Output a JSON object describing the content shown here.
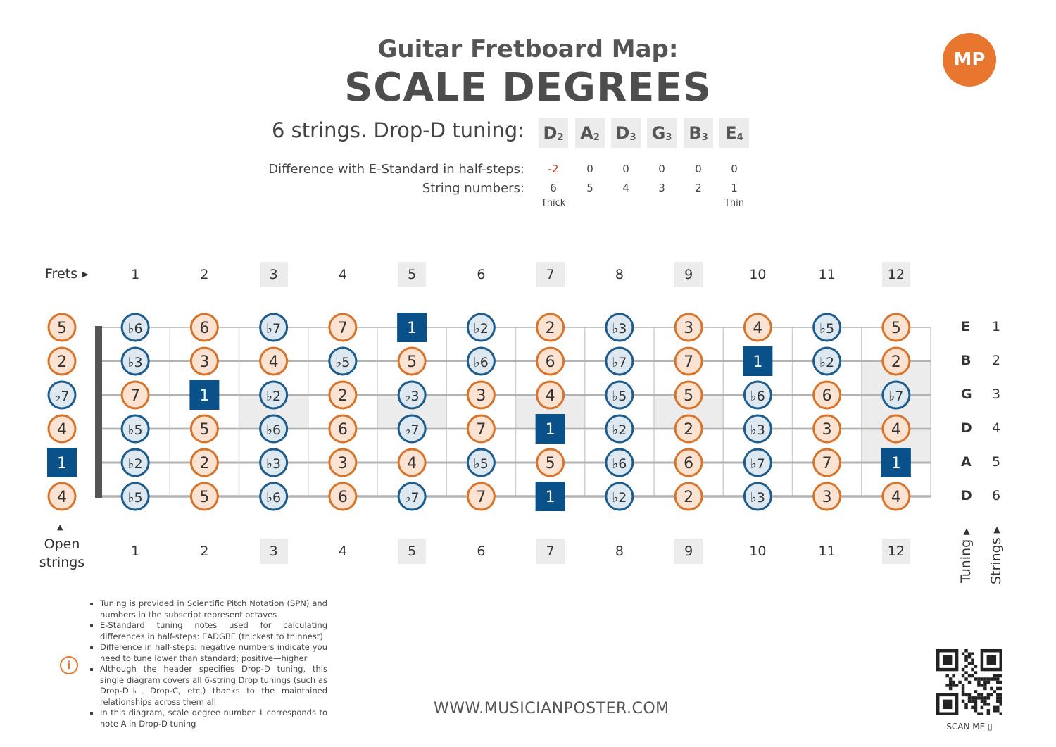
{
  "header": {
    "title_line1": "Guitar Fretboard Map:",
    "title_line2": "SCALE DEGREES",
    "tuning_label": "6 strings. Drop-D tuning:",
    "logo_text": "MP",
    "tuning_notes": [
      {
        "note": "D",
        "octave": "2"
      },
      {
        "note": "A",
        "octave": "2"
      },
      {
        "note": "D",
        "octave": "3"
      },
      {
        "note": "G",
        "octave": "3"
      },
      {
        "note": "B",
        "octave": "3"
      },
      {
        "note": "E",
        "octave": "4"
      }
    ],
    "difference_label": "Difference with E-Standard in half-steps:",
    "differences": [
      "-2",
      "0",
      "0",
      "0",
      "0",
      "0"
    ],
    "string_numbers_label": "String numbers:",
    "string_numbers": [
      "6",
      "5",
      "4",
      "3",
      "2",
      "1"
    ],
    "thick_label": "Thick",
    "thin_label": "Thin"
  },
  "fretboard": {
    "frets_label": "Frets",
    "fret_numbers": [
      "1",
      "2",
      "3",
      "4",
      "5",
      "6",
      "7",
      "8",
      "9",
      "10",
      "11",
      "12"
    ],
    "shaded_frets": [
      3,
      5,
      7,
      9,
      12
    ],
    "open_strings_label_line1": "Open",
    "open_strings_label_line2": "strings",
    "tuning_axis_label": "Tuning",
    "strings_axis_label": "Strings",
    "string_tuning_letters": [
      "E",
      "B",
      "G",
      "D",
      "A",
      "D"
    ],
    "string_numbers": [
      "1",
      "2",
      "3",
      "4",
      "5",
      "6"
    ],
    "rows": [
      [
        "5",
        "b6",
        "6",
        "b7",
        "7",
        "1",
        "b2",
        "2",
        "b3",
        "3",
        "4",
        "b5",
        "5"
      ],
      [
        "2",
        "b3",
        "3",
        "4",
        "b5",
        "5",
        "b6",
        "6",
        "b7",
        "7",
        "1",
        "b2",
        "2"
      ],
      [
        "b7",
        "7",
        "1",
        "b2",
        "2",
        "b3",
        "3",
        "4",
        "b5",
        "5",
        "b6",
        "6",
        "b7"
      ],
      [
        "4",
        "b5",
        "5",
        "b6",
        "6",
        "b7",
        "7",
        "1",
        "b2",
        "2",
        "b3",
        "3",
        "4"
      ],
      [
        "1",
        "b2",
        "2",
        "b3",
        "3",
        "4",
        "b5",
        "5",
        "b6",
        "6",
        "b7",
        "7",
        "1"
      ],
      [
        "4",
        "b5",
        "5",
        "b6",
        "6",
        "b7",
        "7",
        "1",
        "b2",
        "2",
        "b3",
        "3",
        "4"
      ]
    ],
    "colors": {
      "natural_stroke": "#d8742a",
      "natural_fill": "#fbe2d1",
      "flat_stroke": "#1d5c8c",
      "flat_fill": "#dde8f1",
      "root_fill": "#0a5189",
      "string_line": "#b3b3b3",
      "nut": "#555555",
      "inlay": "#ececec"
    }
  },
  "notes": [
    "Tuning is provided in Scientific Pitch Notation (SPN) and numbers in the subscript represent octaves",
    "E-Standard tuning notes used for calculating differences in half-steps: EADGBE (thickest to thinnest)",
    "Difference in half-steps: negative numbers indicate you need to tune lower than standard; positive—higher",
    "Although the header specifies Drop-D tuning, this single diagram covers all 6-string Drop tunings (such as Drop-D♭, Drop-C, etc.) thanks to the maintained relationships across them all",
    "In this diagram, scale degree number 1 corresponds to note A in Drop-D tuning"
  ],
  "footer": {
    "website": "WWW.MUSICIANPOSTER.COM",
    "scan_label": "SCAN ME"
  }
}
